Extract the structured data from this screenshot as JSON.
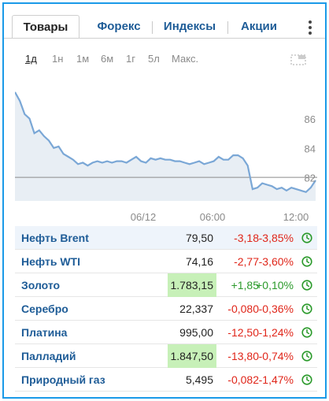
{
  "tabs": [
    {
      "label": "Товары",
      "active": true
    },
    {
      "label": "Форекс",
      "active": false
    },
    {
      "label": "Индексы",
      "active": false
    },
    {
      "label": "Акции",
      "active": false
    }
  ],
  "ranges": [
    "1д",
    "1н",
    "1м",
    "6м",
    "1г",
    "5л",
    "Макс."
  ],
  "active_range": "1д",
  "chart_data": {
    "type": "area",
    "x_tick_labels": [
      "06/12",
      "06:00",
      "12:00"
    ],
    "y_tick_labels": [
      "86",
      "84",
      "82"
    ],
    "ylim": [
      80.8,
      88.3
    ],
    "reference_line": 82.4,
    "values": [
      88.2,
      87.6,
      86.7,
      86.4,
      85.4,
      85.6,
      85.2,
      84.9,
      84.4,
      84.5,
      84.0,
      83.8,
      83.6,
      83.3,
      83.4,
      83.2,
      83.4,
      83.5,
      83.4,
      83.5,
      83.4,
      83.5,
      83.5,
      83.4,
      83.6,
      83.8,
      83.5,
      83.4,
      83.7,
      83.6,
      83.7,
      83.6,
      83.6,
      83.5,
      83.5,
      83.4,
      83.3,
      83.4,
      83.5,
      83.3,
      83.4,
      83.5,
      83.8,
      83.6,
      83.6,
      83.9,
      83.9,
      83.7,
      83.2,
      81.6,
      81.7,
      82.0,
      81.9,
      81.8,
      81.6,
      81.7,
      81.5,
      81.7,
      81.6,
      81.5,
      81.4,
      81.7,
      82.2
    ],
    "colors": {
      "line": "#7aa7d6",
      "fill": "#e8eef4",
      "reference": "#8a8a8a",
      "tick": "#8a8a8a"
    },
    "grid": false
  },
  "rows": [
    {
      "name": "Нефть Brent",
      "price": "79,50",
      "change": "-3,18",
      "percent": "-3,85%",
      "dir": "neg",
      "highlight": true,
      "flash": false
    },
    {
      "name": "Нефть WTI",
      "price": "74,16",
      "change": "-2,77",
      "percent": "-3,60%",
      "dir": "neg",
      "highlight": false,
      "flash": false
    },
    {
      "name": "Золото",
      "price": "1.783,15",
      "change": "+1,85",
      "percent": "+0,10%",
      "dir": "pos",
      "highlight": false,
      "flash": true
    },
    {
      "name": "Серебро",
      "price": "22,337",
      "change": "-0,080",
      "percent": "-0,36%",
      "dir": "neg",
      "highlight": false,
      "flash": false
    },
    {
      "name": "Платина",
      "price": "995,00",
      "change": "-12,50",
      "percent": "-1,24%",
      "dir": "neg",
      "highlight": false,
      "flash": false
    },
    {
      "name": "Палладий",
      "price": "1.847,50",
      "change": "-13,80",
      "percent": "-0,74%",
      "dir": "neg",
      "highlight": false,
      "flash": true
    },
    {
      "name": "Природный газ",
      "price": "5,495",
      "change": "-0,082",
      "percent": "-1,47%",
      "dir": "neg",
      "highlight": false,
      "flash": false
    }
  ],
  "icons": {
    "menu": "more-vertical-icon",
    "expand": "expand-icon",
    "status": "clock-icon"
  },
  "accent_color": "#1a9ae8"
}
